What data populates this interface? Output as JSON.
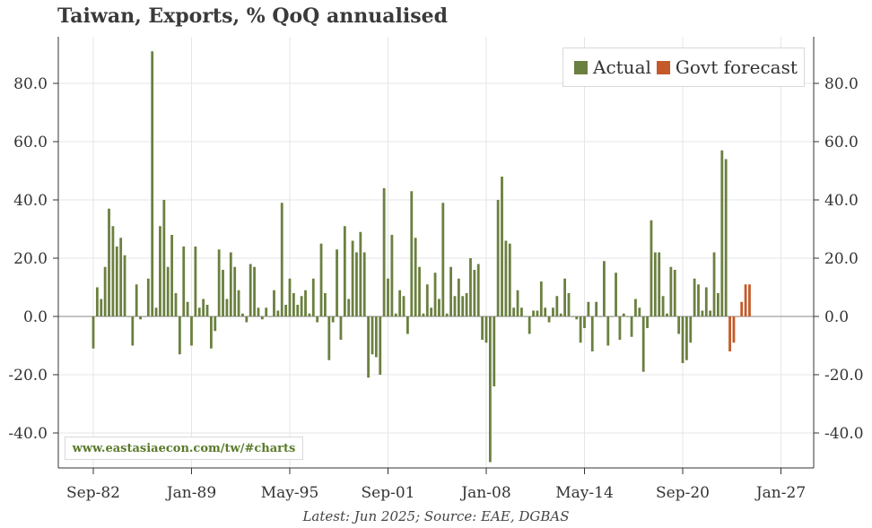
{
  "title": "Taiwan, Exports, % QoQ annualised",
  "footnote": "Latest: Jun 2025; Source: EAE, DGBAS",
  "source_url": "www.eastasiaecon.com/tw/#charts",
  "colors": {
    "actual": "#6b8040",
    "forecast": "#c45a2a",
    "grid": "#e6e6e6",
    "axis": "#333333",
    "zero": "#8a8a8a"
  },
  "legend": {
    "actual": "Actual",
    "forecast": "Govt forecast"
  },
  "chart_data": {
    "type": "bar",
    "title": "Taiwan, Exports, % QoQ annualised",
    "xlabel": "",
    "ylabel": "",
    "ylim": [
      -52,
      96
    ],
    "yticks": [
      -40,
      -20,
      0,
      20,
      40,
      60,
      80
    ],
    "ytick_labels": [
      "-40.0",
      "-20.0",
      "0.0",
      "20.0",
      "40.0",
      "60.0",
      "80.0"
    ],
    "xticks": [
      "Sep-82",
      "Jan-89",
      "May-95",
      "Sep-01",
      "Jan-08",
      "May-14",
      "Sep-20",
      "Jan-27"
    ],
    "grid": true,
    "legend_position": "top-right",
    "start": "Sep-82",
    "frequency": "quarterly",
    "series": [
      {
        "name": "Actual",
        "values": [
          -11,
          10,
          6,
          17,
          37,
          31,
          24,
          27,
          21,
          0,
          -10,
          11,
          -1,
          0,
          13,
          91,
          3,
          31,
          40,
          17,
          28,
          8,
          -13,
          24,
          5,
          -10,
          24,
          3,
          6,
          4,
          -11,
          -5,
          23,
          16,
          6,
          22,
          17,
          9,
          1,
          -2,
          18,
          17,
          3,
          -1,
          3,
          0,
          9,
          2,
          39,
          4,
          13,
          8,
          4,
          7,
          9,
          1,
          13,
          -2,
          25,
          8,
          -15,
          -2,
          23,
          -8,
          31,
          6,
          26,
          22,
          29,
          22,
          -21,
          -13,
          -14,
          -20,
          44,
          13,
          28,
          1,
          9,
          7,
          -6,
          43,
          27,
          17,
          1,
          11,
          3,
          15,
          6,
          39,
          1,
          17,
          7,
          13,
          7,
          8,
          20,
          16,
          18,
          -8,
          -9,
          -50,
          -24,
          40,
          48,
          26,
          25,
          3,
          9,
          3,
          0,
          -6,
          2,
          2,
          12,
          3,
          -2,
          3,
          7,
          1,
          13,
          8,
          0,
          -1,
          -9,
          -4,
          5,
          -12,
          5,
          0,
          19,
          -10,
          0,
          15,
          -8,
          1,
          0,
          -7,
          6,
          3,
          -19,
          -4,
          33,
          22,
          22,
          7,
          1,
          17,
          16,
          -6,
          -16,
          -15,
          -9,
          13,
          11,
          2,
          10,
          2,
          22,
          8,
          57,
          54
        ]
      },
      {
        "name": "Govt forecast",
        "values": [
          -12,
          -9,
          0,
          5,
          11,
          11
        ]
      }
    ]
  }
}
